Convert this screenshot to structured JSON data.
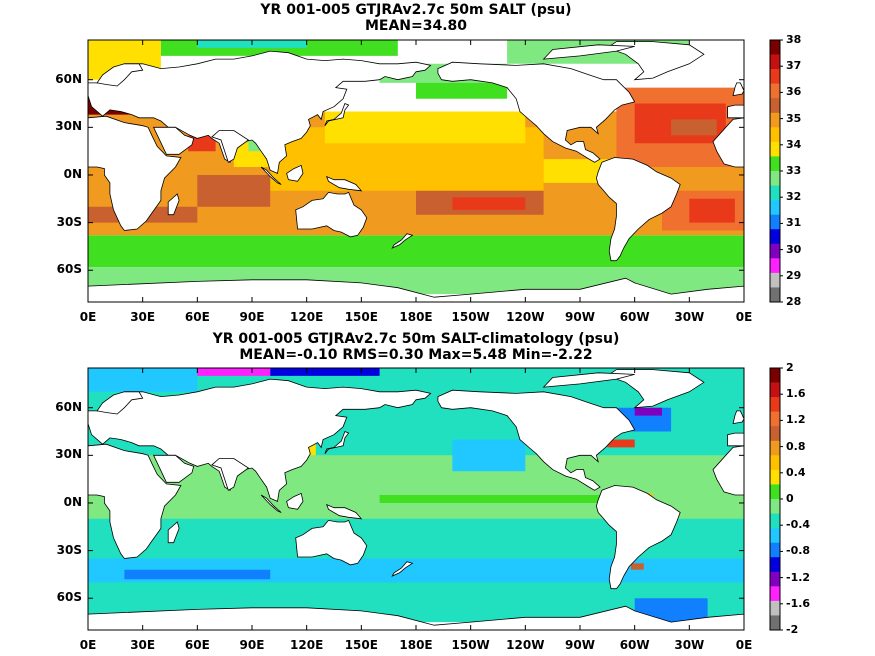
{
  "chart_data": [
    {
      "type": "heatmap",
      "title": "YR 001-005 GTJRAv2.7c 50m SALT (psu)",
      "subtitle": "MEAN=34.80",
      "x_ticks": [
        "0E",
        "30E",
        "60E",
        "90E",
        "120E",
        "150E",
        "180E",
        "150W",
        "120W",
        "90W",
        "60W",
        "30W",
        "0E"
      ],
      "y_ticks": [
        "60N",
        "30N",
        "0N",
        "30S",
        "60S"
      ],
      "y_tick_values": [
        60,
        30,
        0,
        -30,
        -60
      ],
      "xlim": [
        0,
        360
      ],
      "ylim": [
        -80,
        85
      ],
      "colorbar": {
        "labels": [
          "38",
          "37",
          "36",
          "35",
          "34",
          "33",
          "32",
          "31",
          "30",
          "29",
          "28"
        ],
        "colors": [
          "#7a0000",
          "#c41010",
          "#e83a1a",
          "#f07030",
          "#c86030",
          "#f09a20",
          "#ffc000",
          "#ffe000",
          "#40e020",
          "#80e880",
          "#20e0c0",
          "#20c8ff",
          "#1080ff",
          "#0000e0",
          "#8000c0",
          "#ff20ff",
          "#c0c0c0",
          "#707070"
        ]
      }
    },
    {
      "type": "heatmap",
      "title": "YR 001-005 GTJRAv2.7c 50m SALT-climatology (psu)",
      "subtitle": "MEAN=-0.10   RMS=0.30   Max=5.48   Min=-2.22",
      "x_ticks": [
        "0E",
        "30E",
        "60E",
        "90E",
        "120E",
        "150E",
        "180E",
        "150W",
        "120W",
        "90W",
        "60W",
        "30W",
        "0E"
      ],
      "y_ticks": [
        "60N",
        "30N",
        "0N",
        "30S",
        "60S"
      ],
      "y_tick_values": [
        60,
        30,
        0,
        -30,
        -60
      ],
      "xlim": [
        0,
        360
      ],
      "ylim": [
        -80,
        85
      ],
      "colorbar": {
        "labels": [
          "2",
          "1.6",
          "1.2",
          "0.8",
          "0.4",
          "0",
          "-0.4",
          "-0.8",
          "-1.2",
          "-1.6",
          "-2"
        ],
        "colors": [
          "#7a0000",
          "#c41010",
          "#e83a1a",
          "#f07030",
          "#c86030",
          "#f09a20",
          "#ffc000",
          "#ffe000",
          "#40e020",
          "#80e880",
          "#20e0c0",
          "#20c8ff",
          "#1080ff",
          "#0000e0",
          "#8000c0",
          "#ff20ff",
          "#c0c0c0",
          "#707070"
        ]
      }
    }
  ]
}
